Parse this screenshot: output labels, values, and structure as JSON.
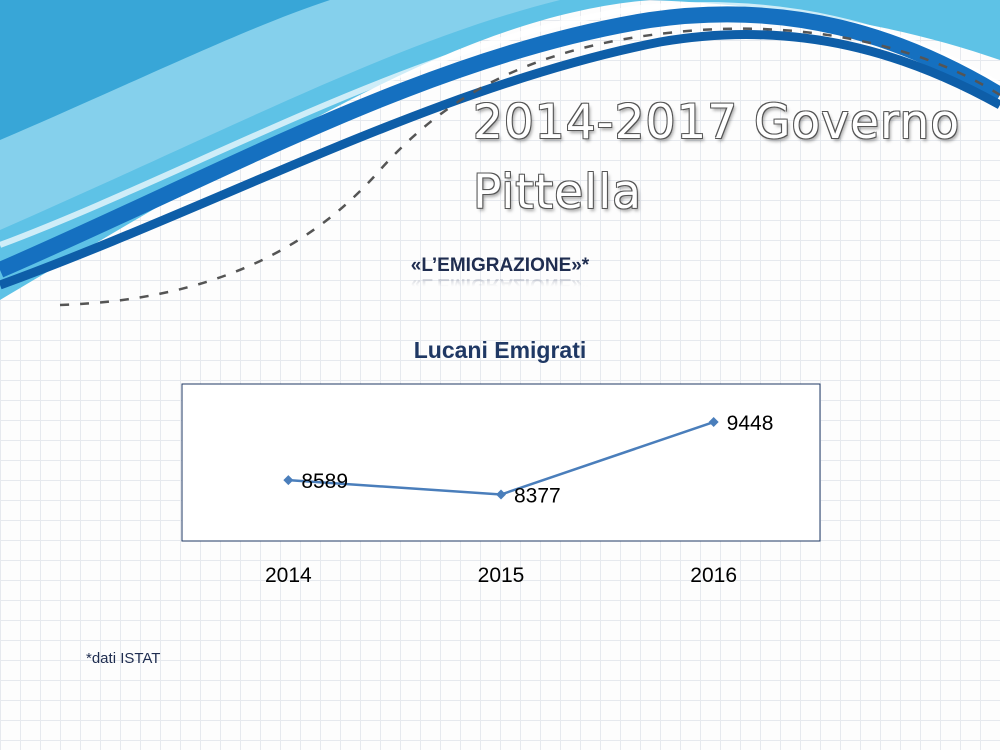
{
  "slide": {
    "title": "2014-2017 Governo Pittella",
    "subtitle": "«L’EMIGRAZIONE»*",
    "footnote": "*dati ISTAT"
  },
  "colors": {
    "wave_light": "#5ec2e6",
    "wave_mid": "#2a9fd4",
    "wave_dark": "#1570c0",
    "line": "#4a7ebb",
    "text_dark": "#1f2d50"
  },
  "chart_data": {
    "type": "line",
    "title": "Lucani Emigrati",
    "categories": [
      "2014",
      "2015",
      "2016"
    ],
    "values": [
      8589,
      8377,
      9448
    ],
    "ylim": [
      8000,
      9700
    ],
    "grid": false,
    "legend": "none",
    "data_labels": true
  }
}
